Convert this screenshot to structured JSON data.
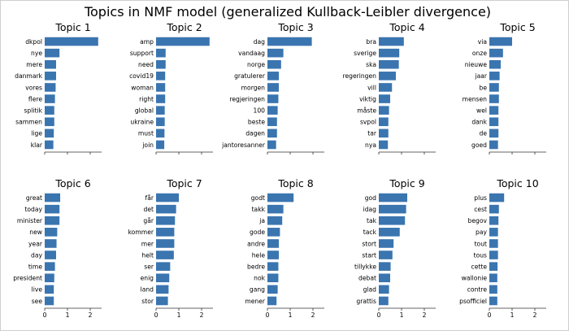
{
  "figure": {
    "title": "Topics in NMF model (generalized Kullback-Leibler divergence)",
    "bar_color": "#3a75b0"
  },
  "chart_data": [
    {
      "type": "bar",
      "orientation": "horizontal",
      "title": "Topic 1",
      "categories": [
        "dkpol",
        "nye",
        "mere",
        "danmark",
        "vores",
        "flere",
        "splitik",
        "sammen",
        "lige",
        "klar"
      ],
      "values": [
        2.35,
        0.65,
        0.5,
        0.5,
        0.48,
        0.45,
        0.42,
        0.42,
        0.4,
        0.38
      ],
      "xlim": [
        0,
        2.5
      ],
      "xticks": []
    },
    {
      "type": "bar",
      "orientation": "horizontal",
      "title": "Topic 2",
      "categories": [
        "amp",
        "support",
        "need",
        "covid19",
        "woman",
        "right",
        "global",
        "ukraine",
        "must",
        "join"
      ],
      "values": [
        2.35,
        0.42,
        0.42,
        0.4,
        0.4,
        0.4,
        0.38,
        0.38,
        0.37,
        0.36
      ],
      "xlim": [
        0,
        2.5
      ],
      "xticks": []
    },
    {
      "type": "bar",
      "orientation": "horizontal",
      "title": "Topic 3",
      "categories": [
        "dag",
        "vandaag",
        "norge",
        "gratulerer",
        "morgen",
        "regjeringen",
        "100",
        "beste",
        "dagen",
        "jantoresanner"
      ],
      "values": [
        1.95,
        0.7,
        0.6,
        0.5,
        0.5,
        0.48,
        0.45,
        0.42,
        0.42,
        0.38
      ],
      "xlim": [
        0,
        2.5
      ],
      "xticks": []
    },
    {
      "type": "bar",
      "orientation": "horizontal",
      "title": "Topic 4",
      "categories": [
        "bra",
        "sverige",
        "ska",
        "regeringen",
        "vill",
        "viktig",
        "måste",
        "svpol",
        "tar",
        "nya"
      ],
      "values": [
        1.1,
        0.9,
        0.88,
        0.75,
        0.58,
        0.5,
        0.45,
        0.42,
        0.42,
        0.4
      ],
      "xlim": [
        0,
        2.5
      ],
      "xticks": []
    },
    {
      "type": "bar",
      "orientation": "horizontal",
      "title": "Topic 5",
      "categories": [
        "via",
        "onze",
        "nieuwe",
        "jaar",
        "be",
        "mensen",
        "wel",
        "dank",
        "de",
        "goed"
      ],
      "values": [
        1.0,
        0.6,
        0.5,
        0.45,
        0.42,
        0.42,
        0.4,
        0.4,
        0.4,
        0.38
      ],
      "xlim": [
        0,
        2.5
      ],
      "xticks": []
    },
    {
      "type": "bar",
      "orientation": "horizontal",
      "title": "Topic 6",
      "categories": [
        "great",
        "today",
        "minister",
        "new",
        "year",
        "day",
        "time",
        "president",
        "live",
        "see"
      ],
      "values": [
        0.68,
        0.65,
        0.65,
        0.55,
        0.52,
        0.5,
        0.45,
        0.42,
        0.4,
        0.4
      ],
      "xlim": [
        0,
        2.5
      ],
      "xticks": [
        "0",
        "1",
        "2"
      ]
    },
    {
      "type": "bar",
      "orientation": "horizontal",
      "title": "Topic 7",
      "categories": [
        "får",
        "det",
        "går",
        "kommer",
        "mer",
        "helt",
        "ser",
        "enig",
        "land",
        "stor"
      ],
      "values": [
        1.0,
        0.88,
        0.83,
        0.8,
        0.8,
        0.78,
        0.62,
        0.58,
        0.55,
        0.52
      ],
      "xlim": [
        0,
        2.5
      ],
      "xticks": [
        "0",
        "1",
        "2"
      ]
    },
    {
      "type": "bar",
      "orientation": "horizontal",
      "title": "Topic 8",
      "categories": [
        "godt",
        "takk",
        "ja",
        "gode",
        "andre",
        "hele",
        "bedre",
        "nok",
        "gang",
        "mener"
      ],
      "values": [
        1.15,
        0.7,
        0.65,
        0.55,
        0.5,
        0.5,
        0.48,
        0.48,
        0.45,
        0.4
      ],
      "xlim": [
        0,
        2.5
      ],
      "xticks": [
        "0",
        "1",
        "2"
      ]
    },
    {
      "type": "bar",
      "orientation": "horizontal",
      "title": "Topic 9",
      "categories": [
        "god",
        "idag",
        "tak",
        "tack",
        "stort",
        "start",
        "tillykke",
        "debat",
        "glad",
        "grattis"
      ],
      "values": [
        1.25,
        1.2,
        1.15,
        0.92,
        0.65,
        0.6,
        0.52,
        0.5,
        0.45,
        0.42
      ],
      "xlim": [
        0,
        2.5
      ],
      "xticks": [
        "0",
        "1",
        "2"
      ]
    },
    {
      "type": "bar",
      "orientation": "horizontal",
      "title": "Topic 10",
      "categories": [
        "plus",
        "cest",
        "begov",
        "pay",
        "tout",
        "tous",
        "cette",
        "wallonie",
        "contre",
        "psofficiel"
      ],
      "values": [
        0.65,
        0.42,
        0.4,
        0.38,
        0.38,
        0.38,
        0.36,
        0.35,
        0.35,
        0.35
      ],
      "xlim": [
        0,
        2.5
      ],
      "xticks": [
        "0",
        "1",
        "2"
      ]
    }
  ]
}
